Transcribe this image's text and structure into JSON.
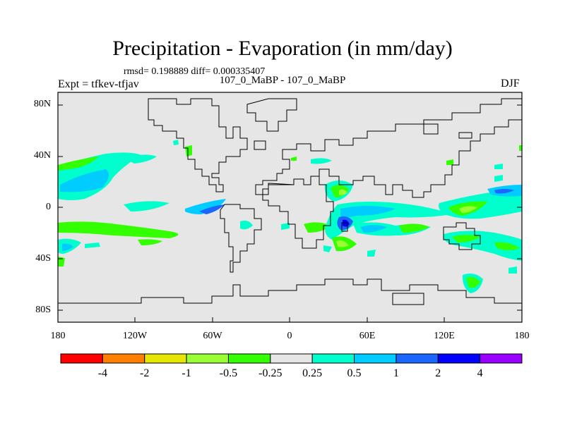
{
  "title": "Precipitation - Evaporation (in mm/day)",
  "stats": "rmsd= 0.198889 diff= 0.000335407",
  "subtitle": "107_0_MaBP - 107_0_MaBP",
  "experiment": "Expt = tfkev-tfjav",
  "season": "DJF",
  "axes": {
    "x_ticks": [
      "180",
      "120W",
      "60W",
      "0",
      "60E",
      "120E",
      "180"
    ],
    "y_ticks": [
      "80N",
      "40N",
      "0",
      "40S",
      "80S"
    ]
  },
  "colorbar": {
    "colors": [
      "#ff0000",
      "#ff8000",
      "#e6e600",
      "#99ff33",
      "#33ff00",
      "#e6e6e6",
      "#00ffcc",
      "#00ccff",
      "#1a66ff",
      "#0000ff",
      "#9900ff"
    ],
    "labels": [
      "-4",
      "-2",
      "-1",
      "-0.5",
      "-0.25",
      "0.25",
      "0.5",
      "1",
      "2",
      "4"
    ]
  },
  "colors": {
    "background_field": "#e6e6e6",
    "coastline": "#000000"
  }
}
